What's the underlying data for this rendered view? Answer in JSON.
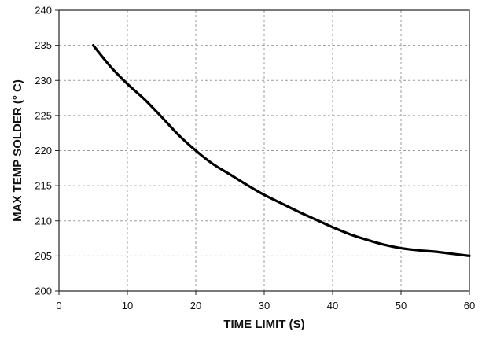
{
  "chart_data": {
    "type": "line",
    "title": "",
    "xlabel": "TIME LIMIT (S)",
    "ylabel": "MAX TEMP SOLDER (° C)",
    "xlim": [
      0,
      60
    ],
    "ylim": [
      200,
      240
    ],
    "x_ticks": [
      0,
      10,
      20,
      30,
      40,
      50,
      60
    ],
    "y_ticks": [
      200,
      205,
      210,
      215,
      220,
      225,
      230,
      235,
      240
    ],
    "grid": true,
    "grid_style": "dashed",
    "legend": "none",
    "line_color": "#000000",
    "series": [
      {
        "x": [
          5,
          7.5,
          10,
          12.5,
          15,
          17.5,
          20,
          22.5,
          25,
          27.5,
          30,
          32.5,
          35,
          37.5,
          40,
          42.5,
          45,
          47.5,
          50,
          52.5,
          55,
          57.5,
          60
        ],
        "y": [
          235,
          232,
          229.5,
          227.3,
          224.8,
          222.2,
          220,
          218.1,
          216.6,
          215.1,
          213.7,
          212.5,
          211.3,
          210.2,
          209.1,
          208.1,
          207.3,
          206.6,
          206.1,
          205.8,
          205.6,
          205.3,
          205
        ]
      }
    ]
  }
}
